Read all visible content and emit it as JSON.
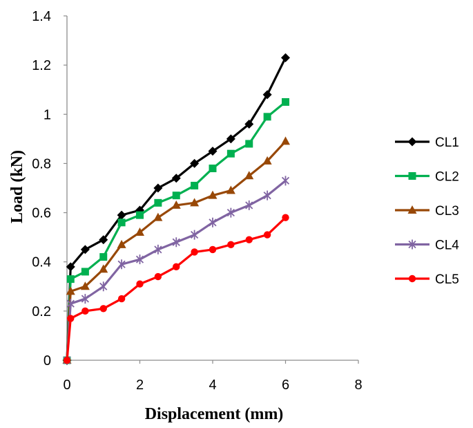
{
  "chart_data": {
    "type": "line",
    "title": "",
    "xlabel": "Displacement (mm)",
    "ylabel": "Load (kN)",
    "xlim": [
      0,
      8
    ],
    "ylim": [
      0,
      1.4
    ],
    "x_ticks": [
      "0",
      "2",
      "4",
      "6",
      "8"
    ],
    "y_ticks": [
      "0",
      "0.2",
      "0.4",
      "0.6",
      "0.8",
      "1",
      "1.2",
      "1.4"
    ],
    "grid": false,
    "legend_position": "right",
    "x": [
      0,
      0.1,
      0.5,
      1,
      1.5,
      2,
      2.5,
      3,
      3.5,
      4,
      4.5,
      5,
      5.5,
      6
    ],
    "series": [
      {
        "name": "CL1",
        "color": "#000000",
        "marker": "diamond",
        "values": [
          0,
          0.38,
          0.45,
          0.49,
          0.59,
          0.61,
          0.7,
          0.74,
          0.8,
          0.85,
          0.9,
          0.96,
          1.08,
          1.23
        ]
      },
      {
        "name": "CL2",
        "color": "#00b050",
        "marker": "square",
        "values": [
          0,
          0.33,
          0.36,
          0.42,
          0.56,
          0.59,
          0.64,
          0.67,
          0.71,
          0.78,
          0.84,
          0.88,
          0.99,
          1.05
        ]
      },
      {
        "name": "CL3",
        "color": "#984807",
        "marker": "triangle",
        "values": [
          0,
          0.28,
          0.3,
          0.37,
          0.47,
          0.52,
          0.58,
          0.63,
          0.64,
          0.67,
          0.69,
          0.75,
          0.81,
          0.89
        ]
      },
      {
        "name": "CL4",
        "color": "#8064a2",
        "marker": "star",
        "values": [
          0,
          0.23,
          0.25,
          0.3,
          0.39,
          0.41,
          0.45,
          0.48,
          0.51,
          0.56,
          0.6,
          0.63,
          0.67,
          0.73
        ]
      },
      {
        "name": "CL5",
        "color": "#ff0000",
        "marker": "circle",
        "values": [
          0,
          0.17,
          0.2,
          0.21,
          0.25,
          0.31,
          0.34,
          0.38,
          0.44,
          0.45,
          0.47,
          0.49,
          0.51,
          0.58
        ]
      }
    ]
  }
}
